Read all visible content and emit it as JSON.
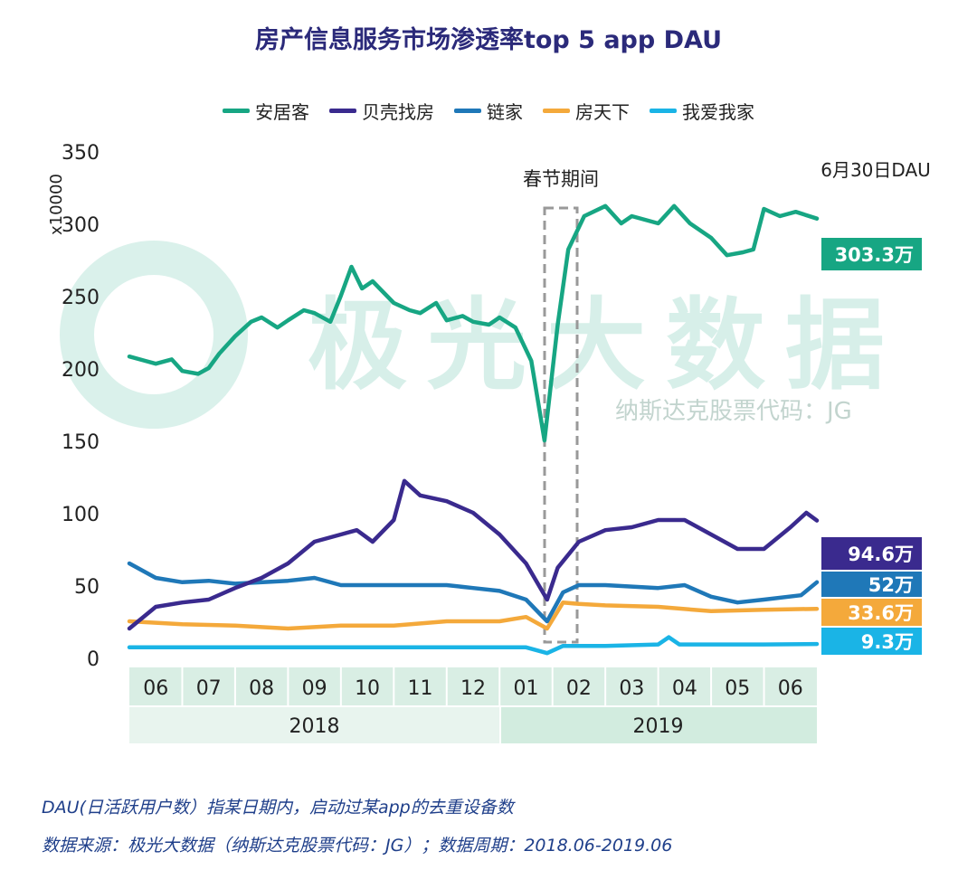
{
  "chart_data": {
    "type": "line",
    "title": "房产信息服务市场渗透率top 5 app DAU",
    "ylabel": "x10000",
    "ylim": [
      0,
      350
    ],
    "yticks": [
      0,
      50,
      100,
      150,
      200,
      250,
      300,
      350
    ],
    "xlim": [
      0,
      13
    ],
    "x_unit": "months since 2018-06-01",
    "x_tick_labels": [
      "06",
      "07",
      "08",
      "09",
      "10",
      "11",
      "12",
      "01",
      "02",
      "03",
      "04",
      "05",
      "06"
    ],
    "year_labels": [
      "2018",
      "2019"
    ],
    "annotation": "春节期间",
    "end_label_title": "6月30日DAU",
    "legend_position": "top",
    "series": [
      {
        "name": "安居客",
        "color": "#17a683",
        "end_label": "303.3万",
        "points": [
          [
            0,
            208
          ],
          [
            0.3,
            205
          ],
          [
            0.5,
            203
          ],
          [
            0.8,
            206
          ],
          [
            1,
            198
          ],
          [
            1.3,
            196
          ],
          [
            1.5,
            200
          ],
          [
            1.7,
            210
          ],
          [
            2,
            222
          ],
          [
            2.3,
            232
          ],
          [
            2.5,
            235
          ],
          [
            2.8,
            228
          ],
          [
            3,
            233
          ],
          [
            3.3,
            240
          ],
          [
            3.5,
            238
          ],
          [
            3.8,
            232
          ],
          [
            4,
            250
          ],
          [
            4.2,
            270
          ],
          [
            4.4,
            255
          ],
          [
            4.6,
            260
          ],
          [
            5,
            245
          ],
          [
            5.3,
            240
          ],
          [
            5.5,
            238
          ],
          [
            5.8,
            245
          ],
          [
            6,
            233
          ],
          [
            6.3,
            236
          ],
          [
            6.5,
            232
          ],
          [
            6.8,
            230
          ],
          [
            7,
            235
          ],
          [
            7.3,
            228
          ],
          [
            7.6,
            205
          ],
          [
            7.85,
            150
          ],
          [
            8.1,
            230
          ],
          [
            8.3,
            282
          ],
          [
            8.6,
            305
          ],
          [
            9,
            312
          ],
          [
            9.3,
            300
          ],
          [
            9.5,
            305
          ],
          [
            10,
            300
          ],
          [
            10.3,
            312
          ],
          [
            10.6,
            300
          ],
          [
            11,
            290
          ],
          [
            11.3,
            278
          ],
          [
            11.6,
            280
          ],
          [
            11.8,
            282
          ],
          [
            12,
            310
          ],
          [
            12.3,
            305
          ],
          [
            12.6,
            308
          ],
          [
            13,
            303.3
          ]
        ]
      },
      {
        "name": "贝壳找房",
        "color": "#3a2a8e",
        "end_label": "94.6万",
        "points": [
          [
            0,
            20
          ],
          [
            0.5,
            35
          ],
          [
            1,
            38
          ],
          [
            1.5,
            40
          ],
          [
            2,
            48
          ],
          [
            2.5,
            55
          ],
          [
            3,
            65
          ],
          [
            3.5,
            80
          ],
          [
            4,
            85
          ],
          [
            4.3,
            88
          ],
          [
            4.6,
            80
          ],
          [
            5,
            95
          ],
          [
            5.2,
            122
          ],
          [
            5.5,
            112
          ],
          [
            6,
            108
          ],
          [
            6.5,
            100
          ],
          [
            7,
            85
          ],
          [
            7.5,
            65
          ],
          [
            7.9,
            40
          ],
          [
            8.1,
            62
          ],
          [
            8.5,
            80
          ],
          [
            9,
            88
          ],
          [
            9.5,
            90
          ],
          [
            10,
            95
          ],
          [
            10.5,
            95
          ],
          [
            11,
            85
          ],
          [
            11.5,
            75
          ],
          [
            12,
            75
          ],
          [
            12.5,
            90
          ],
          [
            12.8,
            100
          ],
          [
            13,
            94.6
          ]
        ]
      },
      {
        "name": "链家",
        "color": "#1f78b8",
        "end_label": "52万",
        "points": [
          [
            0,
            65
          ],
          [
            0.5,
            55
          ],
          [
            1,
            52
          ],
          [
            1.5,
            53
          ],
          [
            2,
            51
          ],
          [
            3,
            53
          ],
          [
            3.5,
            55
          ],
          [
            4,
            50
          ],
          [
            5,
            50
          ],
          [
            6,
            50
          ],
          [
            6.5,
            48
          ],
          [
            7,
            46
          ],
          [
            7.5,
            40
          ],
          [
            7.9,
            25
          ],
          [
            8.2,
            45
          ],
          [
            8.5,
            50
          ],
          [
            9,
            50
          ],
          [
            10,
            48
          ],
          [
            10.5,
            50
          ],
          [
            11,
            42
          ],
          [
            11.5,
            38
          ],
          [
            12,
            40
          ],
          [
            12.7,
            43
          ],
          [
            13,
            52
          ]
        ]
      },
      {
        "name": "房天下",
        "color": "#f4a93b",
        "end_label": "33.6万",
        "points": [
          [
            0,
            25
          ],
          [
            1,
            23
          ],
          [
            2,
            22
          ],
          [
            3,
            20
          ],
          [
            4,
            22
          ],
          [
            5,
            22
          ],
          [
            6,
            25
          ],
          [
            7,
            25
          ],
          [
            7.5,
            28
          ],
          [
            7.9,
            20
          ],
          [
            8.2,
            38
          ],
          [
            8.5,
            37
          ],
          [
            9,
            36
          ],
          [
            10,
            35
          ],
          [
            11,
            32
          ],
          [
            12,
            33
          ],
          [
            13,
            33.6
          ]
        ]
      },
      {
        "name": "我爱我家",
        "color": "#1ab4e6",
        "end_label": "9.3万",
        "points": [
          [
            0,
            7
          ],
          [
            2,
            7
          ],
          [
            4,
            7
          ],
          [
            6,
            7
          ],
          [
            7.5,
            7
          ],
          [
            7.9,
            3
          ],
          [
            8.2,
            8
          ],
          [
            9,
            8
          ],
          [
            10,
            9
          ],
          [
            10.2,
            14
          ],
          [
            10.4,
            9
          ],
          [
            11,
            9
          ],
          [
            12,
            9
          ],
          [
            13,
            9.3
          ]
        ]
      }
    ]
  },
  "watermark": {
    "main": "极光大数据",
    "sub": "纳斯达克股票代码：JG"
  },
  "footer": {
    "line1": "DAU(日活跃用户数）指某日期内，启动过某app的去重设备数",
    "line2": "数据来源：极光大数据（纳斯达克股票代码：JG）；数据周期：2018.06-2019.06"
  }
}
